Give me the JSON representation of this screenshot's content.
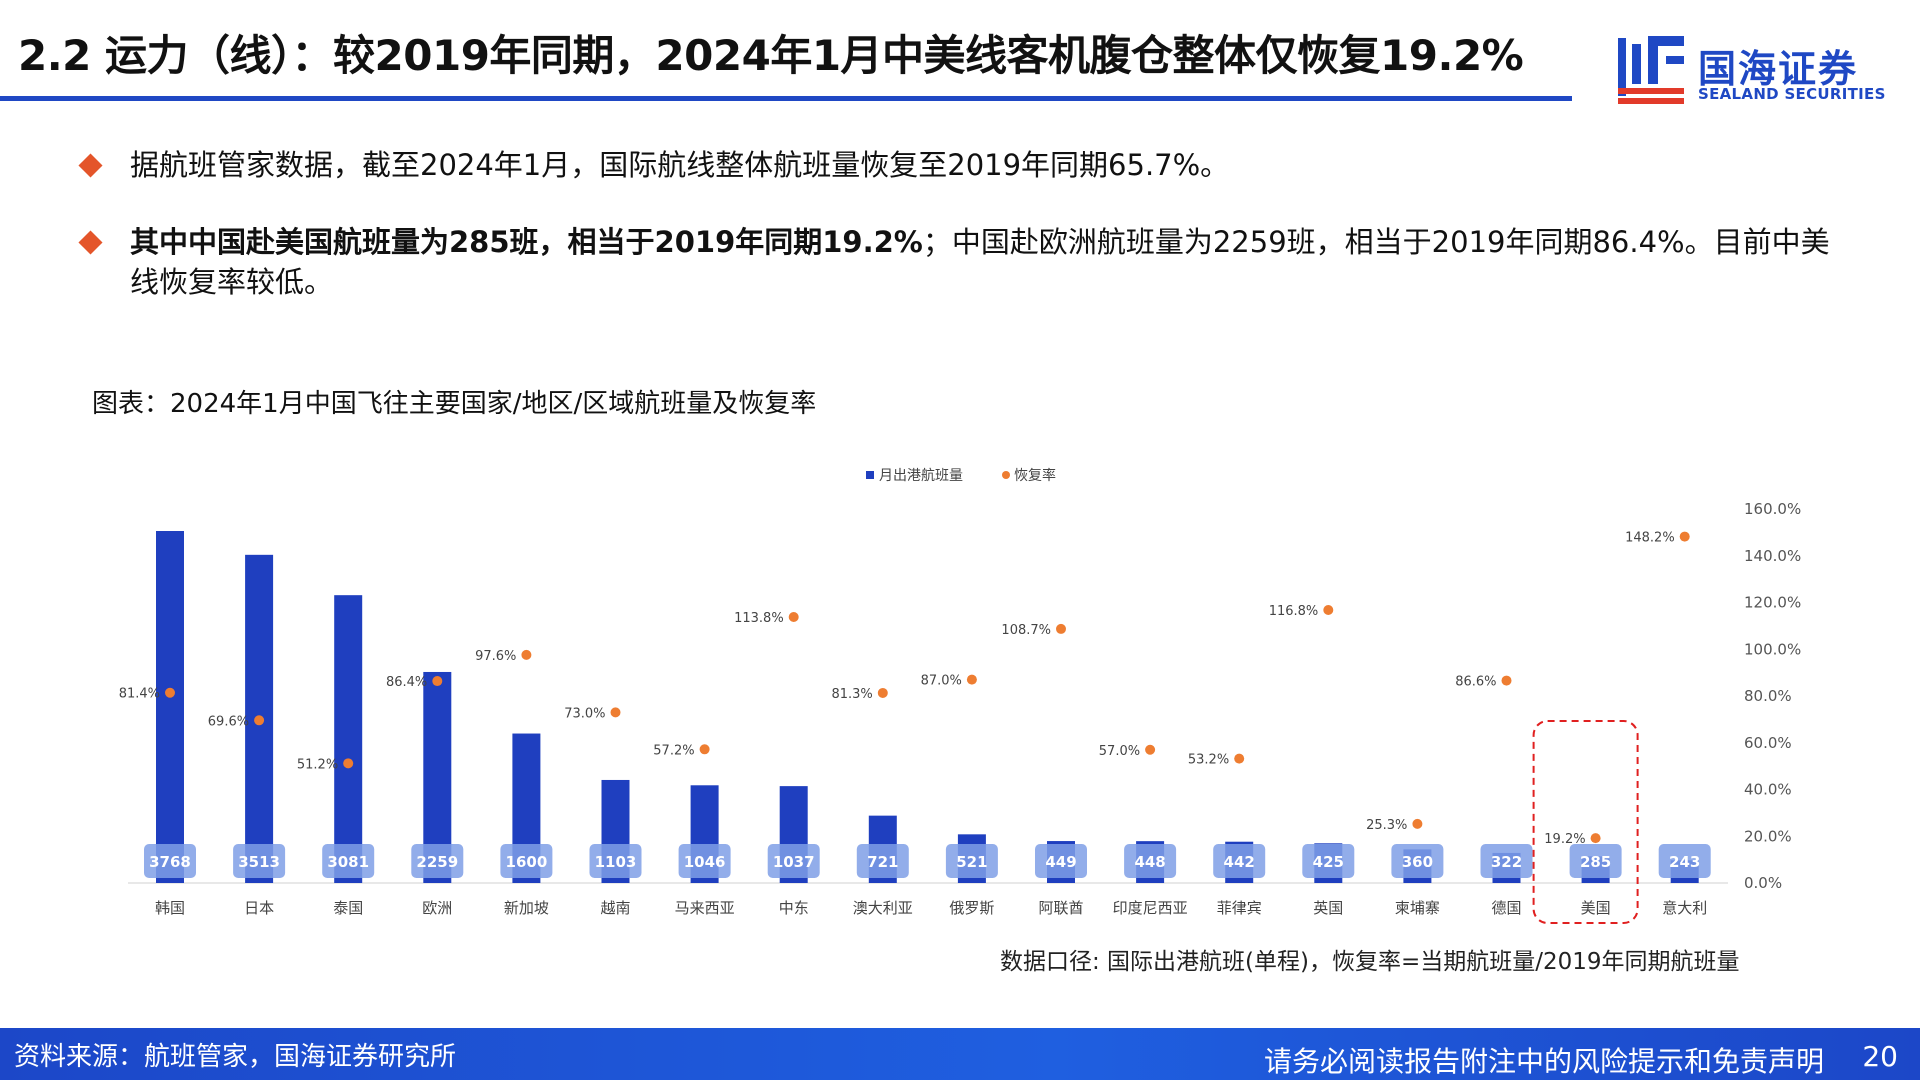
{
  "header": {
    "title": "2.2 运力（线）：较2019年同期，2024年1月中美线客机腹仓整体仅恢复19.2%",
    "logo_cn": "国海证券",
    "logo_en": "SEALAND SECURITIES"
  },
  "bullets": [
    {
      "text": "据航班管家数据，截至2024年1月，国际航线整体航班量恢复至2019年同期65.7%。"
    },
    {
      "bold": "其中中国赴美国航班量为285班，相当于2019年同期19.2%",
      "text": "；中国赴欧洲航班量为2259班，相当于2019年同期86.4%。目前中美线恢复率较低。"
    }
  ],
  "chart_caption": "图表：2024年1月中国飞往主要国家/地区/区域航班量及恢复率",
  "chart_data": {
    "type": "bar",
    "title": "",
    "legend": [
      "月出港航班量",
      "恢复率"
    ],
    "categories": [
      "韩国",
      "日本",
      "泰国",
      "欧洲",
      "新加坡",
      "越南",
      "马来西亚",
      "中东",
      "澳大利亚",
      "俄罗斯",
      "阿联酋",
      "印度尼西亚",
      "菲律宾",
      "英国",
      "柬埔寨",
      "德国",
      "美国",
      "意大利"
    ],
    "series": [
      {
        "name": "月出港航班量",
        "values": [
          3768,
          3513,
          3081,
          2259,
          1600,
          1103,
          1046,
          1037,
          721,
          521,
          449,
          448,
          442,
          425,
          360,
          322,
          285,
          243
        ]
      },
      {
        "name": "恢复率",
        "values": [
          81.4,
          69.6,
          51.2,
          86.4,
          97.6,
          73.0,
          57.2,
          113.8,
          81.3,
          87.0,
          108.7,
          57.0,
          53.2,
          116.8,
          25.3,
          86.6,
          19.2,
          148.2
        ]
      }
    ],
    "y_right_ticks": [
      "0.0%",
      "20.0%",
      "40.0%",
      "60.0%",
      "80.0%",
      "100.0%",
      "120.0%",
      "140.0%",
      "160.0%"
    ],
    "y_right_range": [
      0,
      160
    ],
    "bar_range": [
      0,
      4000
    ],
    "highlight_category": "美国",
    "note": "数据口径: 国际出港航班(单程)，恢复率=当期航班量/2019年同期航班量",
    "colors": {
      "bar": "#1f3fbf",
      "dot": "#ee7d31",
      "label_box": "#7f9fe6",
      "highlight": "#e02020"
    }
  },
  "footer": {
    "source": "资料来源：航班管家，国海证券研究所",
    "disclaimer": "请务必阅读报告附注中的风险提示和免责声明",
    "page": "20"
  }
}
